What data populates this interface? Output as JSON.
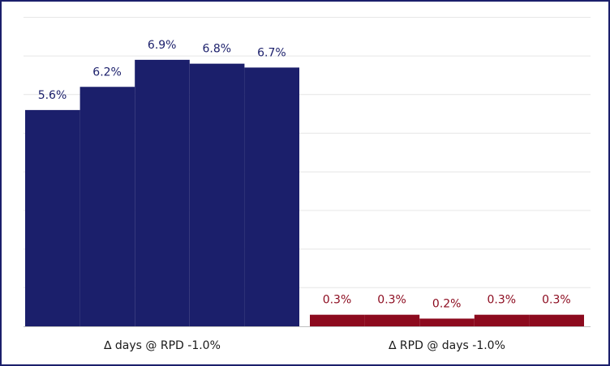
{
  "chart_data": {
    "type": "bar",
    "title": "",
    "xlabel": "",
    "ylabel": "",
    "ylim": [
      0,
      8
    ],
    "grid": true,
    "legend": "none",
    "groups": [
      {
        "category": "∆ days @ RPD -1.0%",
        "color": "#1b1f6b",
        "values": [
          5.6,
          6.2,
          6.9,
          6.8,
          6.7
        ],
        "labels": [
          "5.6%",
          "6.2%",
          "6.9%",
          "6.8%",
          "6.7%"
        ]
      },
      {
        "category": "∆ RPD @ days -1.0%",
        "color": "#8c0a1e",
        "values": [
          0.3,
          0.3,
          0.2,
          0.3,
          0.3
        ],
        "labels": [
          "0.3%",
          "0.3%",
          "0.2%",
          "0.3%",
          "0.3%"
        ]
      }
    ]
  },
  "colors": {
    "border": "#1b1f6b",
    "grid": "#e6e6e6",
    "axis": "#bfbfbf"
  }
}
